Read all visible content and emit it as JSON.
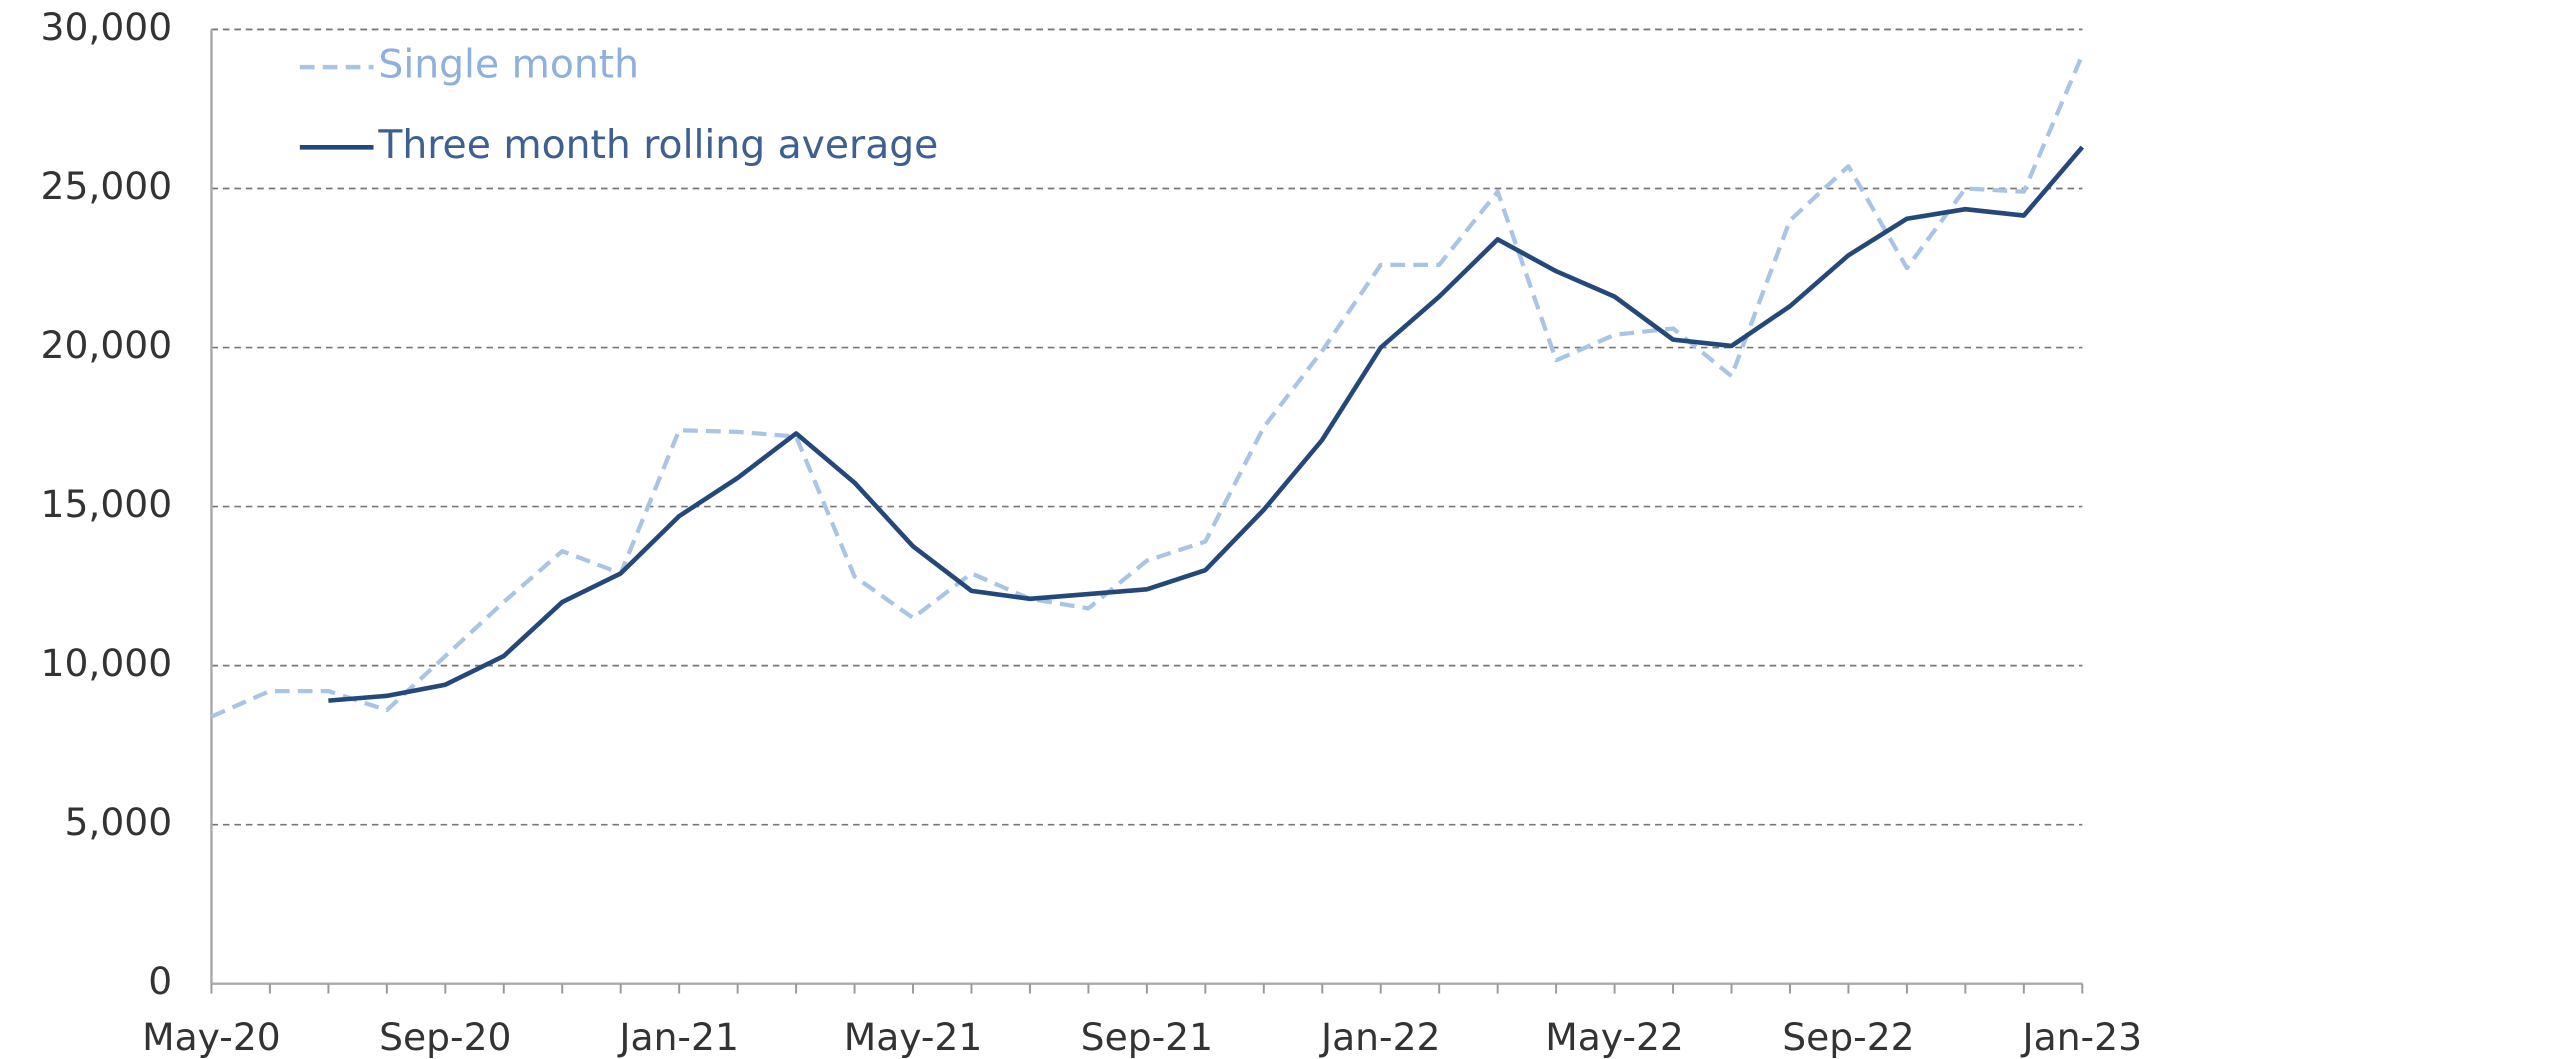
{
  "chart_data": {
    "type": "line",
    "categories": [
      "May-20",
      null,
      null,
      null,
      "Sep-20",
      null,
      null,
      null,
      "Jan-21",
      null,
      null,
      null,
      "May-21",
      null,
      null,
      null,
      "Sep-21",
      null,
      null,
      null,
      "Jan-22",
      null,
      null,
      null,
      "May-22",
      null,
      null,
      null,
      "Sep-22",
      null,
      null,
      null,
      "Jan-23"
    ],
    "series": [
      {
        "name": "Single month",
        "color": "#a9c4e4",
        "dashed": true,
        "values": [
          8400,
          9200,
          9200,
          8600,
          10300,
          12000,
          13600,
          12900,
          17400,
          17350,
          17200,
          12800,
          11500,
          12900,
          12100,
          11800,
          13300,
          13900,
          17500,
          19900,
          22600,
          22600,
          24900,
          19600,
          20400,
          20600,
          19100,
          24000,
          25700,
          22500,
          25000,
          24900,
          29200
        ]
      },
      {
        "name": "Three month rolling average",
        "color": "#24487a",
        "dashed": false,
        "values": [
          null,
          null,
          8900,
          9050,
          9400,
          10300,
          12000,
          12900,
          14700,
          15900,
          17300,
          15750,
          13750,
          12350,
          12100,
          12250,
          12400,
          13000,
          14900,
          17100,
          20000,
          21600,
          23400,
          22400,
          21600,
          20250,
          20050,
          21300,
          22900,
          24050,
          24350,
          24150,
          26300
        ]
      }
    ],
    "ylim": [
      0,
      30000
    ],
    "yticks": [
      0,
      {
        "value": 5000,
        "label": "5,000"
      },
      {
        "value": 10000,
        "label": "10,000"
      },
      {
        "value": 15000,
        "label": "15,000"
      },
      {
        "value": 20000,
        "label": "20,000"
      },
      {
        "value": 25000,
        "label": "25,000"
      },
      {
        "value": 30000,
        "label": "30,000"
      }
    ],
    "grid": true,
    "legend": "top-left"
  }
}
